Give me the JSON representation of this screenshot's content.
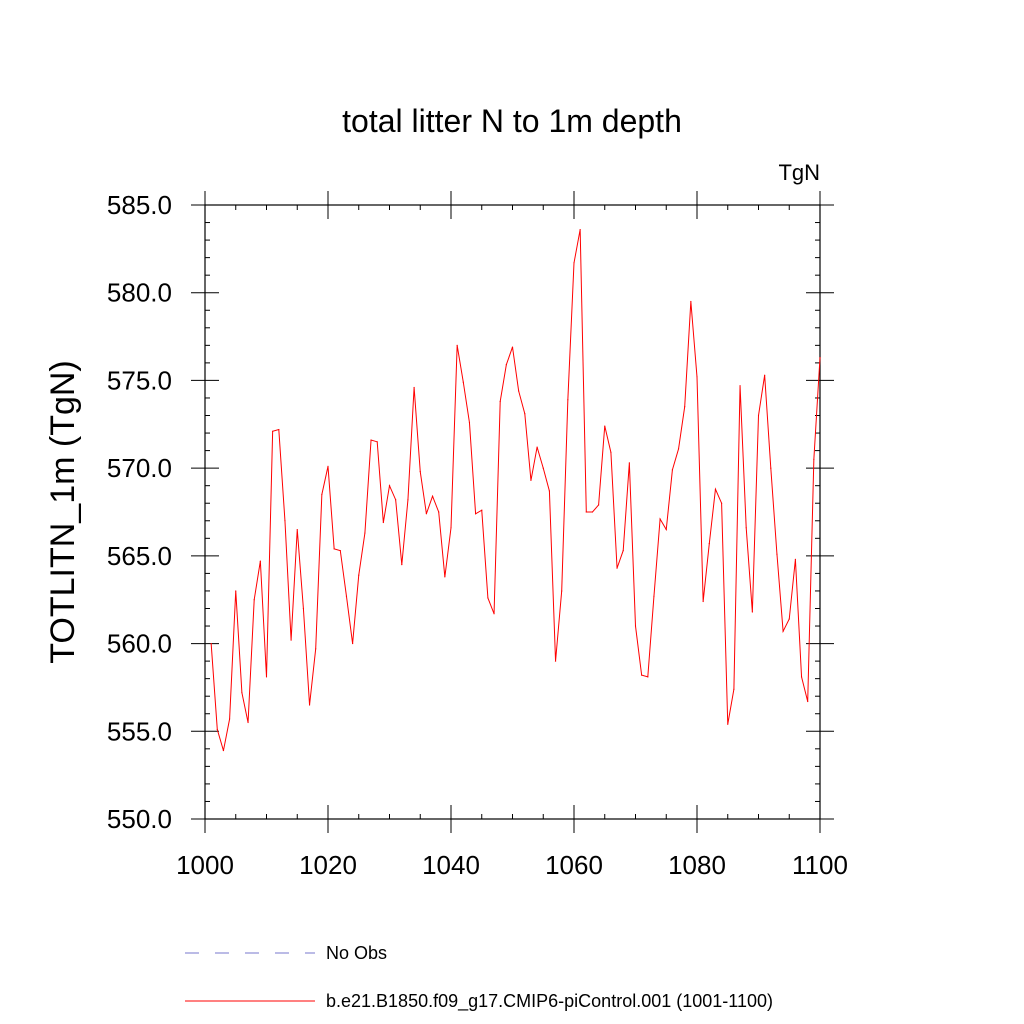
{
  "chart_data": {
    "type": "line",
    "title": "total litter N to 1m depth",
    "units_label": "TgN",
    "ylabel": "TOTLITN_1m  (TgN)",
    "xlabel": "",
    "xlim": [
      1000,
      1100
    ],
    "ylim": [
      550,
      585
    ],
    "x_ticks": [
      "1000",
      "1020",
      "1040",
      "1060",
      "1080",
      "1100"
    ],
    "y_ticks": [
      "550.0",
      "555.0",
      "560.0",
      "565.0",
      "570.0",
      "575.0",
      "580.0",
      "585.0"
    ],
    "x_tick_values": [
      1000,
      1020,
      1040,
      1060,
      1080,
      1100
    ],
    "y_tick_values": [
      550,
      555,
      560,
      565,
      570,
      575,
      580,
      585
    ],
    "series": [
      {
        "name": "b.e21.B1850.f09_g17.CMIP6-piControl.001 (1001-1100)",
        "color": "#ff0000",
        "x": [
          1001,
          1002,
          1003,
          1004,
          1005,
          1006,
          1007,
          1008,
          1009,
          1010,
          1011,
          1012,
          1013,
          1014,
          1015,
          1016,
          1017,
          1018,
          1019,
          1020,
          1021,
          1022,
          1023,
          1024,
          1025,
          1026,
          1027,
          1028,
          1029,
          1030,
          1031,
          1032,
          1033,
          1034,
          1035,
          1036,
          1037,
          1038,
          1039,
          1040,
          1041,
          1042,
          1043,
          1044,
          1045,
          1046,
          1047,
          1048,
          1049,
          1050,
          1051,
          1052,
          1053,
          1054,
          1055,
          1056,
          1057,
          1058,
          1059,
          1060,
          1061,
          1062,
          1063,
          1064,
          1065,
          1066,
          1067,
          1068,
          1069,
          1070,
          1071,
          1072,
          1073,
          1074,
          1075,
          1076,
          1077,
          1078,
          1079,
          1080,
          1081,
          1082,
          1083,
          1084,
          1085,
          1086,
          1087,
          1088,
          1089,
          1090,
          1091,
          1092,
          1093,
          1094,
          1095,
          1096,
          1097,
          1098,
          1099,
          1100
        ],
        "values": [
          560.0,
          555.1,
          553.9,
          555.7,
          563.0,
          557.2,
          555.5,
          562.5,
          564.7,
          558.1,
          572.1,
          572.2,
          567.0,
          560.2,
          566.5,
          562.0,
          556.5,
          559.7,
          568.5,
          570.1,
          565.4,
          565.3,
          562.7,
          560.0,
          563.9,
          566.3,
          571.6,
          571.5,
          566.9,
          569.0,
          568.2,
          564.5,
          568.2,
          574.6,
          569.8,
          567.4,
          568.4,
          567.5,
          563.8,
          566.6,
          577.0,
          574.9,
          572.6,
          567.4,
          567.6,
          562.6,
          561.7,
          573.8,
          575.9,
          576.9,
          574.4,
          573.1,
          569.3,
          571.2,
          570.0,
          568.7,
          559.0,
          563.0,
          573.9,
          581.7,
          583.6,
          567.5,
          567.5,
          567.9,
          572.4,
          570.9,
          564.3,
          565.3,
          570.3,
          561.0,
          558.2,
          558.1,
          562.7,
          567.1,
          566.5,
          569.9,
          571.1,
          573.5,
          579.5,
          575.2,
          562.4,
          565.7,
          568.8,
          568.0,
          555.4,
          557.4,
          574.7,
          566.6,
          561.8,
          573.0,
          575.3,
          570.0,
          565.1,
          560.7,
          561.4,
          564.8,
          558.1,
          556.7,
          570.5,
          576.3
        ]
      }
    ],
    "legend": [
      {
        "label": "No Obs",
        "color": "#7777cc",
        "dash": "dashed"
      },
      {
        "label": "b.e21.B1850.f09_g17.CMIP6-piControl.001 (1001-1100)",
        "color": "#ff0000",
        "dash": "solid"
      }
    ]
  }
}
